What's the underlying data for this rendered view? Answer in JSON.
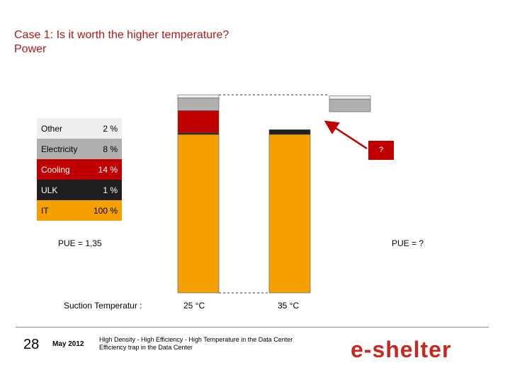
{
  "title": {
    "line1": "Case 1: Is it worth the higher temperature?",
    "line2": "Power"
  },
  "legend": [
    {
      "label": "Other",
      "pct": "2 %",
      "color": "#efefef",
      "text_color": "#000000"
    },
    {
      "label": "Electricity",
      "pct": "8 %",
      "color": "#b0b0b0",
      "text_color": "#000000"
    },
    {
      "label": "Cooling",
      "pct": "14 %",
      "color": "#c00000",
      "text_color": "#ffffff"
    },
    {
      "label": "ULK",
      "pct": "1 %",
      "color": "#1f1f1f",
      "text_color": "#ffffff"
    },
    {
      "label": "IT",
      "pct": "100 %",
      "color": "#f5a000",
      "text_color": "#000000"
    }
  ],
  "chart_data": {
    "type": "bar",
    "stacked": true,
    "categories": [
      "25 °C",
      "35 °C",
      "?"
    ],
    "series": [
      {
        "name": "IT",
        "values": [
          100,
          100,
          null
        ]
      },
      {
        "name": "ULK",
        "values": [
          1,
          3,
          null
        ]
      },
      {
        "name": "Cooling",
        "values": [
          14,
          null,
          null
        ]
      },
      {
        "name": "Electricity",
        "values": [
          8,
          null,
          8
        ]
      },
      {
        "name": "Other",
        "values": [
          2,
          null,
          2
        ]
      }
    ],
    "annotations": {
      "pue_left": "PUE = 1,35",
      "pue_right": "PUE = ?",
      "question_box": "?"
    },
    "xlabel": "Suction Temperatur :"
  },
  "footer": {
    "page": "28",
    "date": "May 2012",
    "line1": "High Density - High Efficiency - High Temperature in the Data Center",
    "line2": "Efficiency trap in the Data Center"
  },
  "logo": "e-shelter",
  "colors": {
    "title": "#b01a1a",
    "it": "#f5a000",
    "ulk": "#1f1f1f",
    "cooling": "#c00000",
    "electricity": "#b0b0b0",
    "other": "#efefef",
    "accent": "#c00000"
  }
}
